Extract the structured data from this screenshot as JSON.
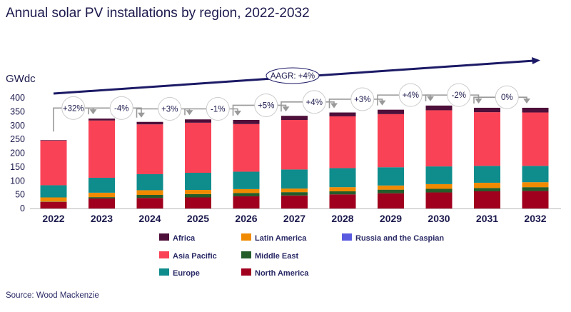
{
  "title": "Annual solar PV installations by region, 2022-2032",
  "source": "Source: Wood Mackenzie",
  "chart_data": {
    "type": "bar",
    "stacked": true,
    "title": "Annual solar PV installations by region, 2022-2032",
    "ylabel": "GWdc",
    "ylim": [
      0,
      400
    ],
    "yticks": [
      0,
      50,
      100,
      150,
      200,
      250,
      300,
      350,
      400
    ],
    "grid": false,
    "legend_position": "bottom",
    "categories": [
      "2022",
      "2023",
      "2024",
      "2025",
      "2026",
      "2027",
      "2028",
      "2029",
      "2030",
      "2031",
      "2032"
    ],
    "series": [
      {
        "name": "North America",
        "color": "#a0001e",
        "values": [
          24,
          36,
          38,
          40,
          44,
          47,
          51,
          55,
          58,
          62,
          63
        ]
      },
      {
        "name": "Middle East",
        "color": "#245c2a",
        "values": [
          1,
          5,
          11,
          12,
          12,
          12,
          11,
          13,
          13,
          12,
          14
        ]
      },
      {
        "name": "Latin America",
        "color": "#f08a00",
        "values": [
          15,
          16,
          17,
          15,
          14,
          13,
          15,
          15,
          17,
          19,
          18
        ]
      },
      {
        "name": "Russia and the Caspian",
        "color": "#5a5ae0",
        "values": [
          0,
          0,
          0,
          0,
          0,
          0,
          0,
          0,
          0,
          0,
          0
        ]
      },
      {
        "name": "Europe",
        "color": "#0f8c8c",
        "values": [
          44,
          54,
          58,
          62,
          63,
          69,
          69,
          66,
          64,
          61,
          59
        ]
      },
      {
        "name": "Asia Pacific",
        "color": "#fa4256",
        "values": [
          161,
          207,
          180,
          181,
          172,
          179,
          187,
          192,
          203,
          194,
          193
        ]
      },
      {
        "name": "Africa",
        "color": "#4e0f3a",
        "values": [
          2,
          7,
          9,
          12,
          15,
          15,
          14,
          16,
          17,
          16,
          17
        ]
      }
    ],
    "legend_order": [
      "Africa",
      "Asia Pacific",
      "Europe",
      "Latin America",
      "Middle East",
      "North America",
      "Russia and the Caspian"
    ],
    "growth_labels": [
      "+32%",
      "-4%",
      "+3%",
      "-1%",
      "+5%",
      "+4%",
      "+3%",
      "+4%",
      "-2%",
      "0%"
    ],
    "trend_annotation": "AAGR: +4%"
  }
}
